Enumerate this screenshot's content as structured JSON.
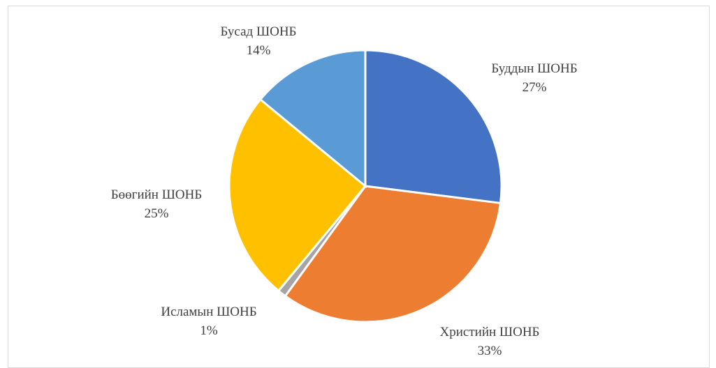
{
  "chart_data": {
    "type": "pie",
    "title": "",
    "slices": [
      {
        "name": "Буддын ШОНБ",
        "value": 27,
        "label": "27%",
        "color": "#4472C4"
      },
      {
        "name": "Христийн ШОНБ",
        "value": 33,
        "label": "33%",
        "color": "#ED7D31"
      },
      {
        "name": "Исламын ШОНБ",
        "value": 1,
        "label": "1%",
        "color": "#A5A5A5"
      },
      {
        "name": "Бөөгийн ШОНБ",
        "value": 25,
        "label": "25%",
        "color": "#FFC000"
      },
      {
        "name": "Бусад ШОНБ",
        "value": 14,
        "label": "14%",
        "color": "#5B9BD5"
      }
    ],
    "start_angle": "12 o'clock",
    "direction": "clockwise",
    "legend": "none",
    "data_labels": "category name and percentage, outside"
  }
}
